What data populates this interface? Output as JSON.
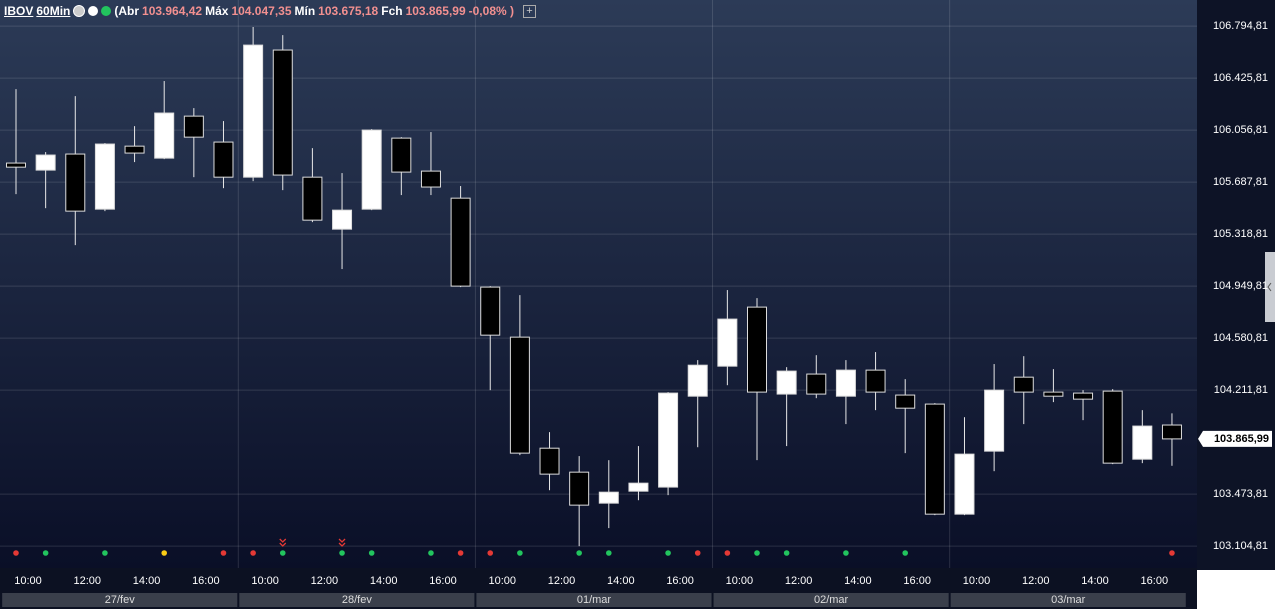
{
  "header": {
    "symbol": "IBOV",
    "interval": "60Min",
    "open_label": "(Abr",
    "open": "103.964,42",
    "high_label": "Máx",
    "high": "104.047,35",
    "low_label": "Mín",
    "low": "103.675,18",
    "close_label": "Fch",
    "close": "103.865,99",
    "change": "-0,08% )"
  },
  "chart_data": {
    "type": "candlestick",
    "categories": [
      "10:00",
      null,
      "12:00",
      null,
      "14:00",
      null,
      "16:00",
      null,
      "10:00",
      null,
      "12:00",
      null,
      "14:00",
      null,
      "16:00",
      null,
      "10:00",
      null,
      "12:00",
      null,
      "14:00",
      null,
      "16:00",
      null,
      "10:00",
      null,
      "12:00",
      null,
      "14:00",
      null,
      "16:00",
      null,
      "10:00",
      null,
      "12:00",
      null,
      "14:00",
      null,
      "16:00",
      null
    ],
    "day_labels": [
      "27/fev",
      "28/fev",
      "01/mar",
      "02/mar",
      "03/mar"
    ],
    "open": [
      105823,
      105773,
      105887,
      105496,
      105943,
      105858,
      106156,
      105972,
      105723,
      106625,
      105723,
      105354,
      105496,
      106000,
      105766,
      105574,
      104943,
      104588,
      103800,
      103630,
      103410,
      103495,
      103524,
      104169,
      104382,
      104801,
      104184,
      104326,
      104169,
      104354,
      104177,
      104113,
      103332,
      103779,
      104304,
      104198,
      104191,
      104205,
      103722,
      103964.42
    ],
    "high": [
      106348,
      105901,
      106298,
      105965,
      106085,
      106405,
      106213,
      106121,
      106788,
      106731,
      105929,
      105752,
      106064,
      106007,
      106043,
      105660,
      104950,
      104886,
      103914,
      103744,
      103715,
      103815,
      104198,
      104425,
      104922,
      104865,
      104375,
      104460,
      104425,
      104482,
      104290,
      104120,
      104020,
      104397,
      104453,
      104361,
      104212,
      104219,
      104070,
      104047.35
    ],
    "low": [
      105603,
      105503,
      105241,
      105482,
      105830,
      105851,
      105723,
      105645,
      105695,
      105631,
      105404,
      105071,
      105489,
      105596,
      105596,
      104943,
      104212,
      103751,
      103502,
      103105,
      103233,
      103431,
      103467,
      103807,
      104247,
      103715,
      103815,
      104155,
      103971,
      104070,
      103765,
      103325,
      103325,
      103637,
      103971,
      104127,
      103999,
      103687,
      103694,
      103675.18
    ],
    "close": [
      105794,
      105880,
      105482,
      105958,
      105894,
      106178,
      106007,
      105723,
      106660,
      105738,
      105418,
      105489,
      106057,
      105759,
      105653,
      104950,
      104602,
      103765,
      103616,
      103396,
      103488,
      103552,
      104191,
      104389,
      104716,
      104198,
      104347,
      104184,
      104354,
      104198,
      104084,
      103332,
      103758,
      104212,
      104198,
      104169,
      104148,
      103694,
      103957,
      103865.99
    ],
    "up_color": "#ffffff",
    "down_color": "#000000",
    "signals": [
      "#e53935",
      "#22c55e",
      null,
      "#22c55e",
      null,
      "#facc15",
      null,
      "#e53935",
      "#e53935",
      "#22c55e",
      null,
      "#22c55e",
      "#22c55e",
      null,
      "#22c55e",
      "#e53935",
      "#e53935",
      "#22c55e",
      null,
      "#22c55e",
      "#22c55e",
      null,
      "#22c55e",
      "#e53935",
      "#e53935",
      "#22c55e",
      "#22c55e",
      null,
      "#22c55e",
      null,
      "#22c55e",
      null,
      null,
      null,
      null,
      null,
      null,
      null,
      null,
      "#e53935"
    ],
    "ylim": [
      102950,
      106980
    ],
    "yticks": [
      {
        "value": 106794.81,
        "label": "106.794,81"
      },
      {
        "value": 106425.81,
        "label": "106.425,81"
      },
      {
        "value": 106056.81,
        "label": "106.056,81"
      },
      {
        "value": 105687.81,
        "label": "105.687,81"
      },
      {
        "value": 105318.81,
        "label": "105.318,81"
      },
      {
        "value": 104949.81,
        "label": "104.949,81"
      },
      {
        "value": 104580.81,
        "label": "104.580,81"
      },
      {
        "value": 104211.81,
        "label": "104.211,81"
      },
      {
        "value": 103473.81,
        "label": "103.473,81"
      },
      {
        "value": 103104.81,
        "label": "103.104,81"
      }
    ],
    "last_price": {
      "value": 103865.99,
      "label": "103.865,99"
    },
    "grid": true
  }
}
